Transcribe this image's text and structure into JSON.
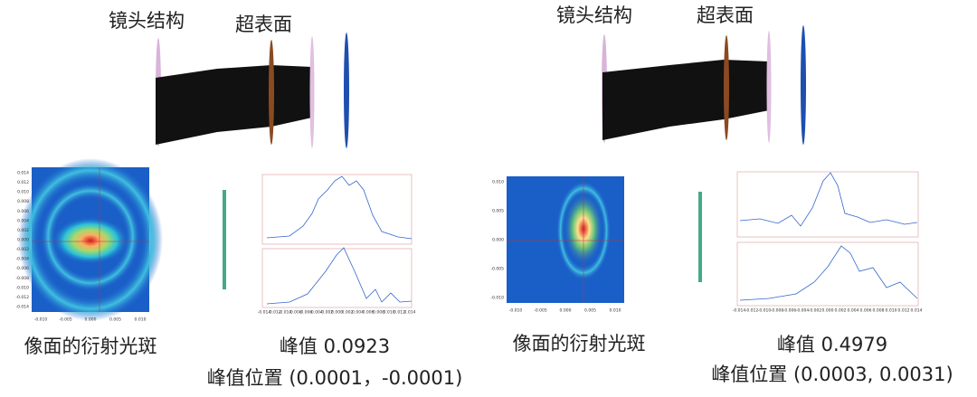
{
  "panels": [
    {
      "lens_label": "镜头结构",
      "metasurface_label": "超表面",
      "spot_label": "像面的衍射光斑",
      "peak": "峰值 0.0923",
      "peak_position": "峰值位置 (0.0001，-0.0001)",
      "spot_xticks": [
        "-0.010",
        "-0.005",
        "0.000",
        "0.005",
        "0.010"
      ],
      "spot_yticks": [
        "0.014",
        "0.012",
        "0.010",
        "0.008",
        "0.006",
        "0.004",
        "0.002",
        "0.000",
        "-0.002",
        "-0.004",
        "-0.006",
        "-0.008",
        "-0.010",
        "-0.012",
        "-0.014"
      ],
      "profile_xticks": [
        "-0.014",
        "-0.012",
        "-0.010",
        "-0.008",
        "-0.006",
        "-0.004",
        "-0.002",
        "0.000",
        "0.002",
        "0.004",
        "0.006",
        "0.008",
        "0.010",
        "0.012",
        "0.014"
      ]
    },
    {
      "lens_label": "镜头结构",
      "metasurface_label": "超表面",
      "spot_label": "像面的衍射光斑",
      "peak": "峰值 0.4979",
      "peak_position": "峰值位置 (0.0003, 0.0031)",
      "spot_xticks": [
        "-0.010",
        "-0.005",
        "0.000",
        "0.005",
        "0.010"
      ],
      "spot_yticks": [
        "0.010",
        "0.005",
        "0.000",
        "-0.005",
        "-0.010"
      ],
      "profile_xticks": [
        "-0.014",
        "-0.012",
        "-0.010",
        "-0.008",
        "-0.006",
        "-0.004",
        "-0.002",
        "0.000",
        "0.002",
        "0.004",
        "0.006",
        "0.008",
        "0.010",
        "0.012",
        "0.014"
      ]
    }
  ]
}
